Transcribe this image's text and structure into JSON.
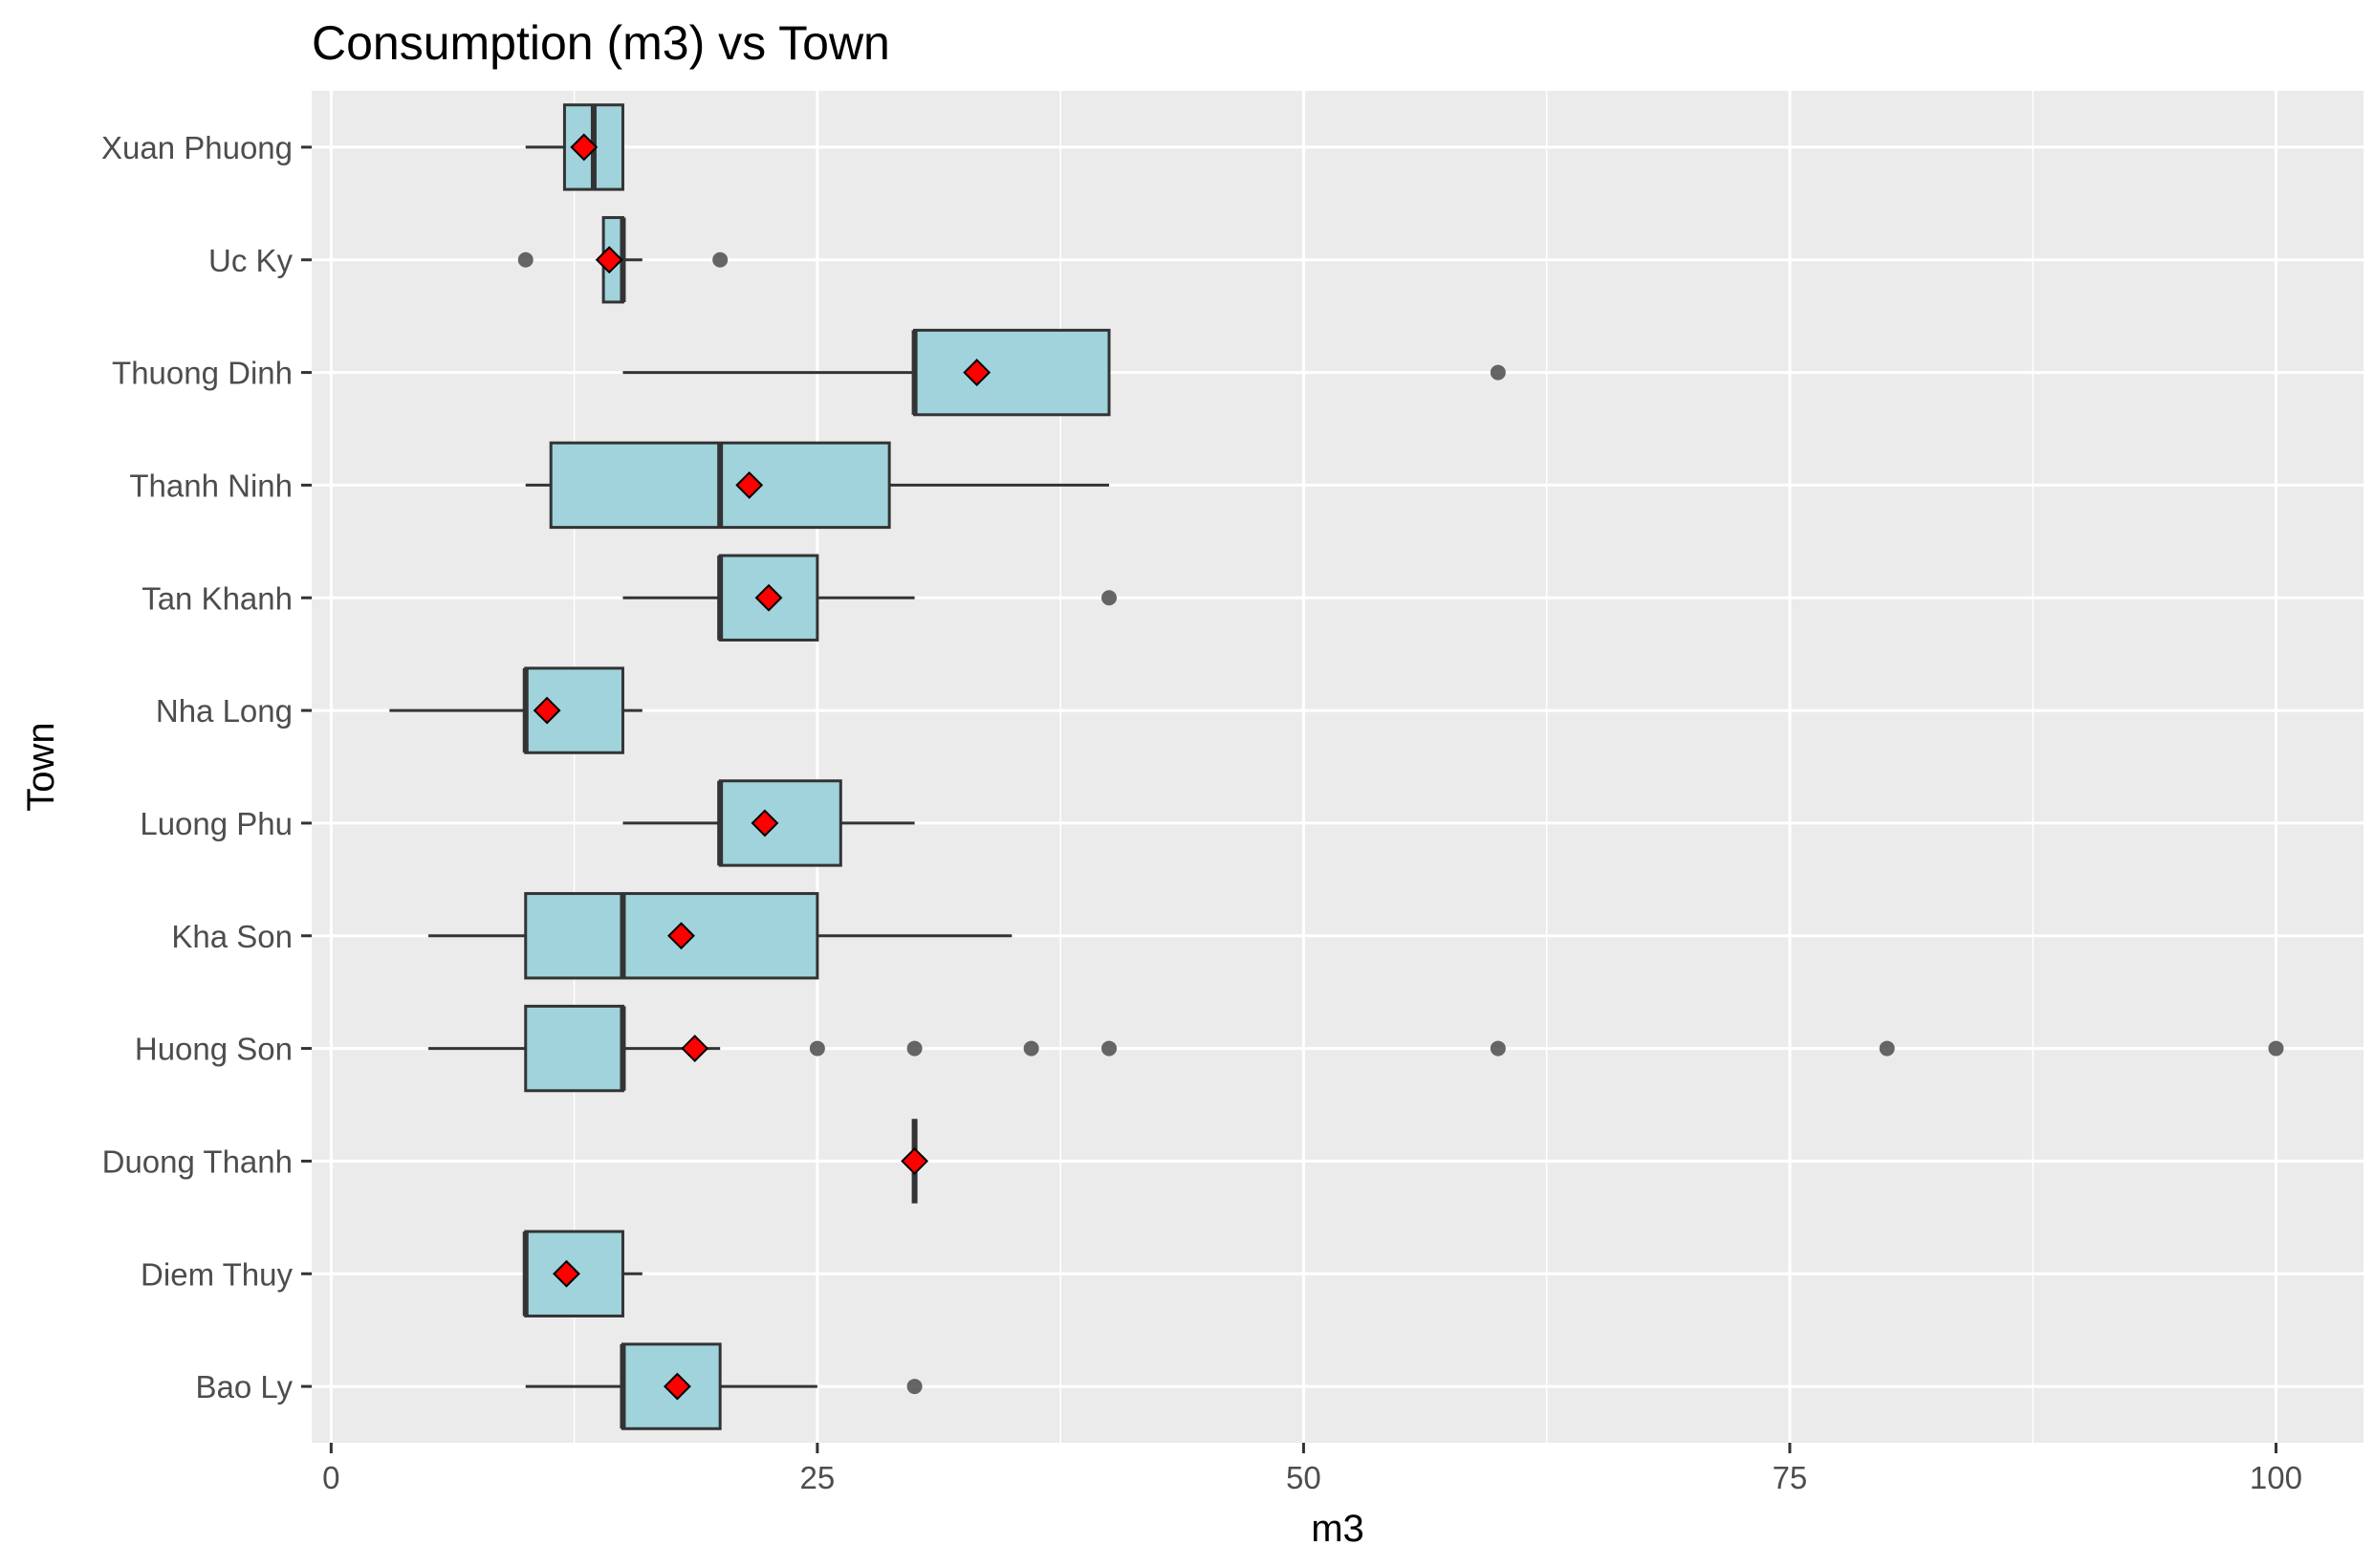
{
  "chart_data": {
    "type": "boxplot",
    "orientation": "horizontal",
    "title": "Consumption (m3) vs Town",
    "xlabel": "m3",
    "ylabel": "Town",
    "xlim": [
      -1,
      104.5
    ],
    "x_ticks": [
      0,
      25,
      50,
      75,
      100
    ],
    "x_tick_labels": [
      "0",
      "25",
      "50",
      "75",
      "100"
    ],
    "grid": true,
    "legend": "none",
    "colors": {
      "panel": "#ebebeb",
      "grid_major": "#ffffff",
      "box_fill": "#a0d3db",
      "box_stroke": "#333333",
      "mean_fill": "#ff0000",
      "outlier": "#555555",
      "tick": "#333333"
    },
    "categories": [
      "Xuan Phuong",
      "Uc Ky",
      "Thuong Dinh",
      "Thanh Ninh",
      "Tan Khanh",
      "Nha Long",
      "Luong Phu",
      "Kha Son",
      "Huong Son",
      "Duong Thanh",
      "Diem Thuy",
      "Bao Ly"
    ],
    "boxes": [
      {
        "town": "Xuan Phuong",
        "lower_whisker": 10,
        "q1": 12,
        "median": 13.5,
        "q3": 15,
        "upper_whisker": 15,
        "mean": 13,
        "outliers": []
      },
      {
        "town": "Uc Ky",
        "lower_whisker": 14,
        "q1": 14,
        "median": 15,
        "q3": 15,
        "upper_whisker": 16,
        "mean": 14.3,
        "outliers": [
          10,
          20
        ]
      },
      {
        "town": "Thuong Dinh",
        "lower_whisker": 15,
        "q1": 30,
        "median": 30,
        "q3": 40,
        "upper_whisker": 40,
        "mean": 33.2,
        "outliers": [
          60
        ]
      },
      {
        "town": "Thanh Ninh",
        "lower_whisker": 10,
        "q1": 11.3,
        "median": 20,
        "q3": 28.7,
        "upper_whisker": 40,
        "mean": 21.5,
        "outliers": []
      },
      {
        "town": "Tan Khanh",
        "lower_whisker": 15,
        "q1": 20,
        "median": 20,
        "q3": 25,
        "upper_whisker": 30,
        "mean": 22.5,
        "outliers": [
          40
        ]
      },
      {
        "town": "Nha Long",
        "lower_whisker": 3,
        "q1": 10,
        "median": 10,
        "q3": 15,
        "upper_whisker": 16,
        "mean": 11.1,
        "outliers": []
      },
      {
        "town": "Luong Phu",
        "lower_whisker": 15,
        "q1": 20,
        "median": 20,
        "q3": 26.2,
        "upper_whisker": 30,
        "mean": 22.3,
        "outliers": []
      },
      {
        "town": "Kha Son",
        "lower_whisker": 5,
        "q1": 10,
        "median": 15,
        "q3": 25,
        "upper_whisker": 35,
        "mean": 18,
        "outliers": []
      },
      {
        "town": "Huong Son",
        "lower_whisker": 5,
        "q1": 10,
        "median": 15,
        "q3": 15,
        "upper_whisker": 20,
        "mean": 18.7,
        "outliers": [
          25,
          30,
          36,
          40,
          60,
          80,
          100
        ]
      },
      {
        "town": "Duong Thanh",
        "lower_whisker": 30,
        "q1": 30,
        "median": 30,
        "q3": 30,
        "upper_whisker": 30,
        "mean": 30,
        "outliers": []
      },
      {
        "town": "Diem Thuy",
        "lower_whisker": 10,
        "q1": 10,
        "median": 10,
        "q3": 15,
        "upper_whisker": 16,
        "mean": 12.1,
        "outliers": []
      },
      {
        "town": "Bao Ly",
        "lower_whisker": 10,
        "q1": 15,
        "median": 15,
        "q3": 20,
        "upper_whisker": 25,
        "mean": 17.8,
        "outliers": [
          30
        ]
      }
    ]
  }
}
